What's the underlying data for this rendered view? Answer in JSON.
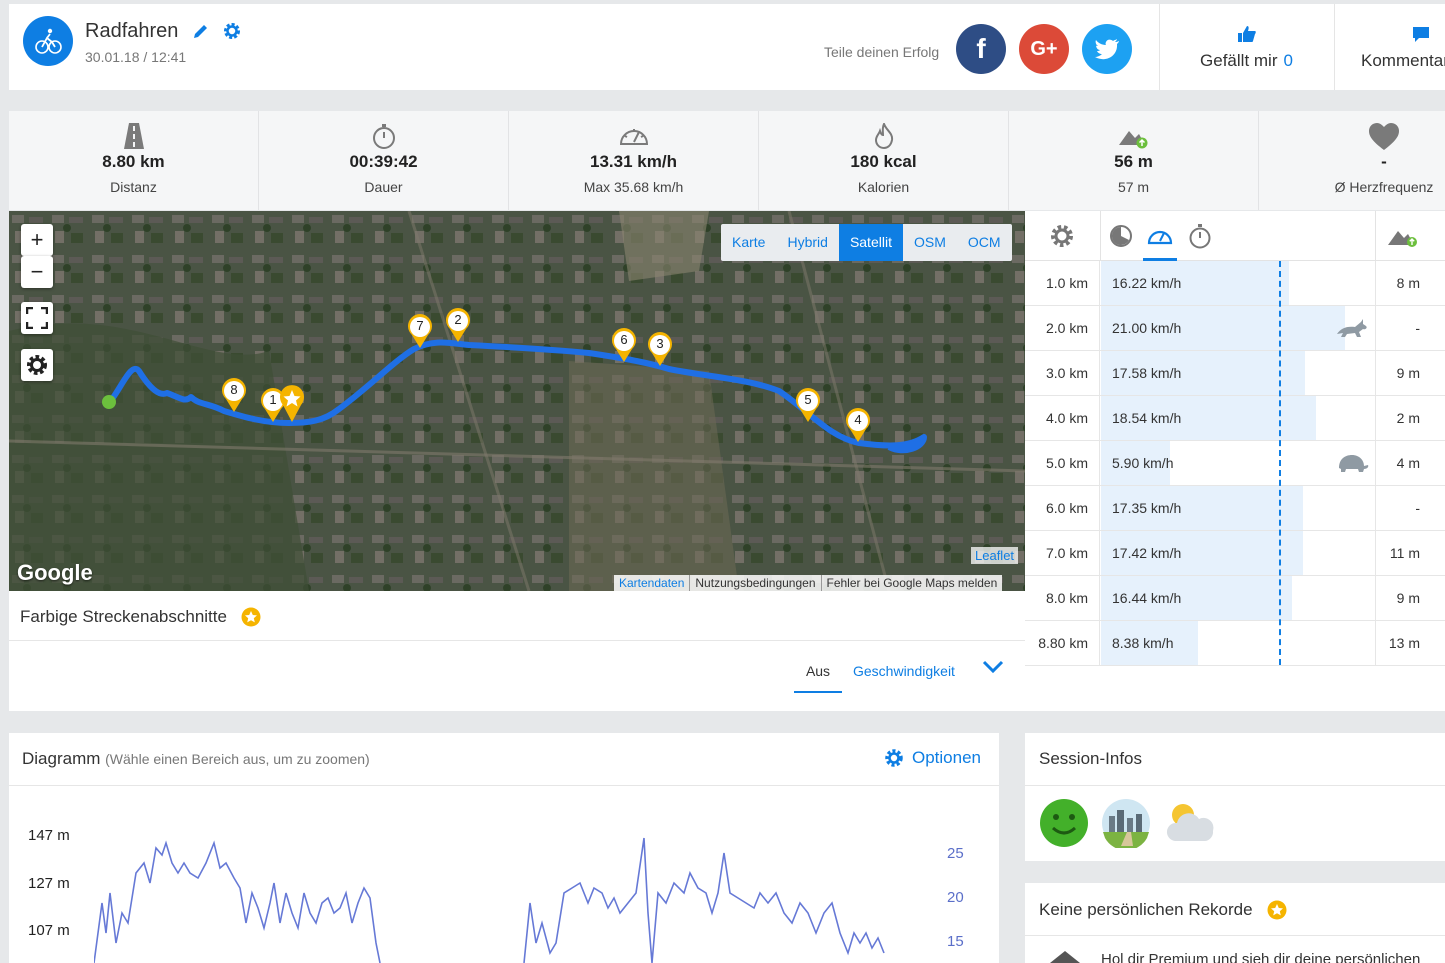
{
  "header": {
    "title": "Radfahren",
    "date": "30.01.18 / 12:41",
    "share_label": "Teile deinen Erfolg",
    "like_label": "Gefällt mir",
    "like_count": "0",
    "comments_label": "Kommentare"
  },
  "stats": [
    {
      "value": "8.80 km",
      "label": "Distanz",
      "icon": "road-icon"
    },
    {
      "value": "00:39:42",
      "label": "Dauer",
      "icon": "stopwatch-icon"
    },
    {
      "value": "13.31 km/h",
      "label": "Max 35.68 km/h",
      "icon": "speedometer-icon"
    },
    {
      "value": "180 kcal",
      "label": "Kalorien",
      "icon": "flame-icon"
    },
    {
      "value": "56 m",
      "label": "57 m",
      "icon": "elevation-icon"
    },
    {
      "value": "-",
      "label": "Ø Herzfrequenz",
      "icon": "heart-icon"
    }
  ],
  "map": {
    "zoom_in": "+",
    "zoom_out": "−",
    "types": [
      "Karte",
      "Hybrid",
      "Satellit",
      "OSM",
      "OCM"
    ],
    "active_type": "Satellit",
    "markers": [
      "8",
      "1",
      "7",
      "2",
      "6",
      "3",
      "5",
      "4"
    ],
    "google": "Google",
    "leaflet": "Leaflet",
    "attribution": [
      "Kartendaten",
      "Nutzungsbedingungen",
      "Fehler bei Google Maps melden"
    ]
  },
  "segments": {
    "title": "Farbige Streckenabschnitte",
    "off": "Aus",
    "speed": "Geschwindigkeit"
  },
  "splits": [
    {
      "km": "1.0 km",
      "speed": "16.22 km/h",
      "speed_value": 16.22,
      "elev": "8 m"
    },
    {
      "km": "2.0 km",
      "speed": "21.00 km/h",
      "speed_value": 21.0,
      "elev": "-",
      "badge": "rabbit-icon"
    },
    {
      "km": "3.0 km",
      "speed": "17.58 km/h",
      "speed_value": 17.58,
      "elev": "9 m"
    },
    {
      "km": "4.0 km",
      "speed": "18.54 km/h",
      "speed_value": 18.54,
      "elev": "2 m"
    },
    {
      "km": "5.0 km",
      "speed": "5.90 km/h",
      "speed_value": 5.9,
      "elev": "4 m",
      "badge": "turtle-icon"
    },
    {
      "km": "6.0 km",
      "speed": "17.35 km/h",
      "speed_value": 17.35,
      "elev": "-"
    },
    {
      "km": "7.0 km",
      "speed": "17.42 km/h",
      "speed_value": 17.42,
      "elev": "11 m"
    },
    {
      "km": "8.0 km",
      "speed": "16.44 km/h",
      "speed_value": 16.44,
      "elev": "9 m"
    },
    {
      "km": "8.80 km",
      "speed": "8.38 km/h",
      "speed_value": 8.38,
      "elev": "13 m"
    }
  ],
  "chart": {
    "title": "Diagramm",
    "hint": "(Wähle einen Bereich aus, um zu zoomen)",
    "options": "Optionen",
    "y_left": [
      "147 m",
      "127 m",
      "107 m"
    ],
    "y_right": [
      "25",
      "20",
      "15"
    ]
  },
  "session": {
    "title": "Session-Infos"
  },
  "records": {
    "title": "Keine persönlichen Rekorde",
    "text": "Hol dir Premium und sieh dir deine persönlichen"
  },
  "colors": {
    "accent": "#0e7ee3",
    "route": "#1f6fe5",
    "marker": "#f5b400"
  }
}
